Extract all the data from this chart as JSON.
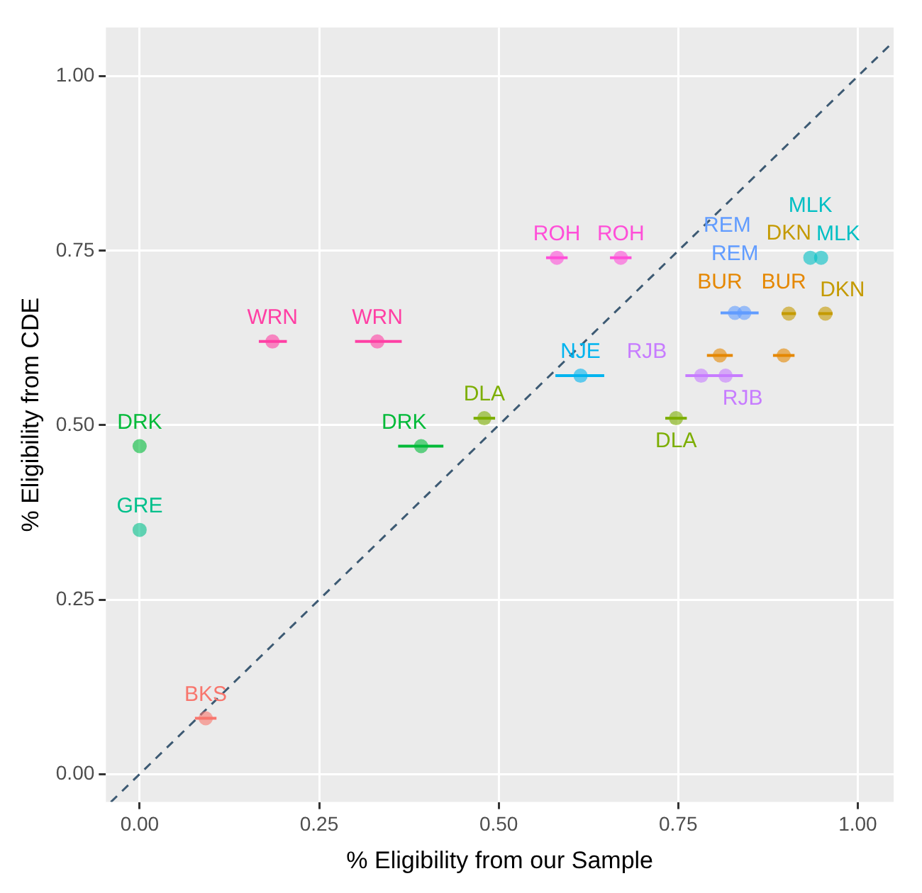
{
  "chart_data": {
    "type": "scatter",
    "xlabel": "% Eligibility from our Sample",
    "ylabel": "% Eligibility from CDE",
    "xlim": [
      -0.047,
      1.05
    ],
    "ylim": [
      -0.04,
      1.07
    ],
    "xticks": [
      {
        "value": 0,
        "label": "0.00"
      },
      {
        "value": 0.25,
        "label": "0.25"
      },
      {
        "value": 0.5,
        "label": "0.50"
      },
      {
        "value": 0.75,
        "label": "0.75"
      },
      {
        "value": 1,
        "label": "1.00"
      }
    ],
    "yticks": [
      {
        "value": 0,
        "label": "0.00"
      },
      {
        "value": 0.25,
        "label": "0.25"
      },
      {
        "value": 0.5,
        "label": "0.50"
      },
      {
        "value": 0.75,
        "label": "0.75"
      },
      {
        "value": 1,
        "label": "1.00"
      }
    ],
    "grid": true,
    "legend": false,
    "marker": "circle",
    "series": [
      {
        "name": "BKS",
        "color": "#f8766d",
        "x": [
          0.092
        ],
        "values": [
          0.08
        ],
        "xerrors": [
          0.015
        ]
      },
      {
        "name": "BUR",
        "color": "#e58700",
        "x": [
          0.808,
          0.897
        ],
        "values": [
          0.6,
          0.6
        ],
        "xerrors": [
          [
            0.79,
            0.826
          ],
          0.015
        ]
      },
      {
        "name": "DKN",
        "color": "#c49a00",
        "x": [
          0.904,
          0.955
        ],
        "values": [
          0.66,
          0.66
        ],
        "xerrors": [
          0.01,
          0.01
        ]
      },
      {
        "name": "DLA",
        "color": "#7cae00",
        "x": [
          0.48,
          0.747
        ],
        "values": [
          0.51,
          0.51
        ],
        "xerrors": [
          0.015,
          0.015
        ]
      },
      {
        "name": "DRK",
        "color": "#00ba38",
        "x": [
          0,
          0.392
        ],
        "values": [
          0.47,
          0.47
        ],
        "xerrors": [
          null,
          [
            0.36,
            0.423
          ]
        ]
      },
      {
        "name": "GRE",
        "color": "#00c08b",
        "x": [
          0
        ],
        "values": [
          0.35
        ],
        "xerrors": [
          null
        ]
      },
      {
        "name": "MLK",
        "color": "#00bfc4",
        "x": [
          0.934,
          0.949
        ],
        "values": [
          0.74,
          0.74
        ],
        "xerrors": [
          null,
          null
        ]
      },
      {
        "name": "NJE",
        "color": "#00b4ef",
        "x": [
          0.614
        ],
        "values": [
          0.571
        ],
        "xerrors": [
          [
            0.579,
            0.647
          ]
        ]
      },
      {
        "name": "REM",
        "color": "#619cff",
        "x": [
          0.829,
          0.842
        ],
        "values": [
          0.661,
          0.661
        ],
        "xerrors": [
          0.02,
          0.02
        ]
      },
      {
        "name": "RJB",
        "color": "#c77cff",
        "x": [
          0.782,
          0.816
        ],
        "values": [
          0.571,
          0.571
        ],
        "xerrors": [
          0.02,
          [
            0.76,
            0.84
          ]
        ]
      },
      {
        "name": "ROH",
        "color": "#ff4fd8",
        "x": [
          0.581,
          0.67
        ],
        "values": [
          0.74,
          0.74
        ],
        "xerrors": [
          0.015,
          0.015
        ]
      },
      {
        "name": "WRN",
        "color": "#ff3fa4",
        "x": [
          0.185,
          0.331
        ],
        "values": [
          0.62,
          0.62
        ],
        "xerrors": [
          [
            0.166,
            0.205
          ],
          [
            0.3,
            0.365
          ]
        ]
      },
      {
        "type": "line",
        "color": "#3d5a73",
        "line_style": "dashed",
        "marker": "none",
        "x": [
          -0.04,
          1.05
        ],
        "values": [
          -0.04,
          1.05
        ]
      }
    ]
  }
}
